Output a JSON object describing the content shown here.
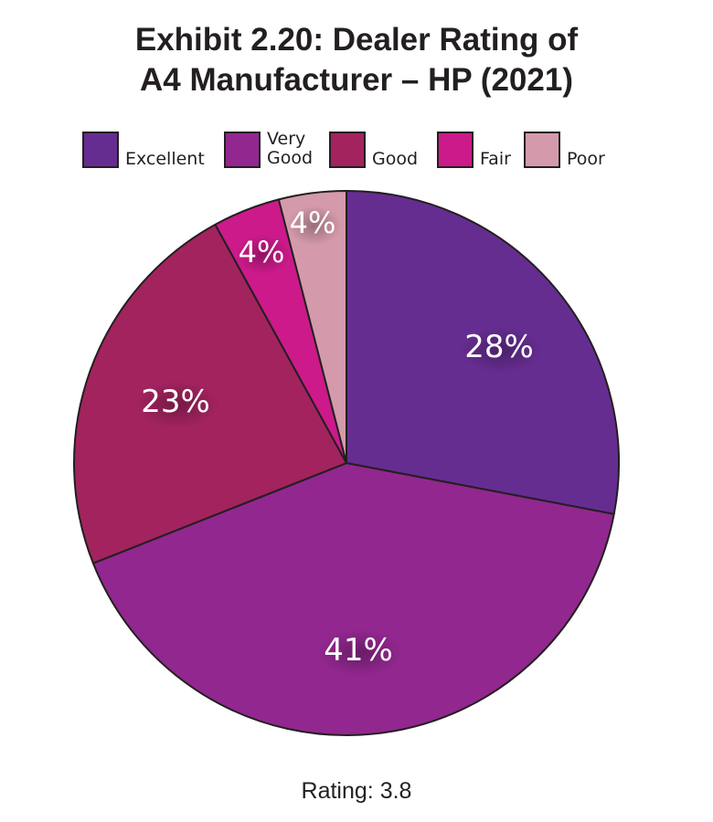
{
  "chart_data": {
    "type": "pie",
    "title_line1": "Exhibit 2.20: Dealer Rating of",
    "title_line2": "A4 Manufacturer – HP (2021)",
    "legend_placement": "top",
    "slices": [
      {
        "label": "Excellent",
        "value": 28,
        "display": "28%",
        "color": "#662d91"
      },
      {
        "label": "Very Good",
        "value": 41,
        "display": "41%",
        "color": "#92278f"
      },
      {
        "label": "Good",
        "value": 23,
        "display": "23%",
        "color": "#a3235f"
      },
      {
        "label": "Fair",
        "value": 4,
        "display": "4%",
        "color": "#cc1a8a"
      },
      {
        "label": "Poor",
        "value": 4,
        "display": "4%",
        "color": "#d49aab"
      }
    ],
    "footer": "Rating: 3.8"
  },
  "legend": {
    "excellent": "Excellent",
    "very": "Very",
    "good_word": "Good",
    "good": "Good",
    "fair": "Fair",
    "poor": "Poor"
  }
}
